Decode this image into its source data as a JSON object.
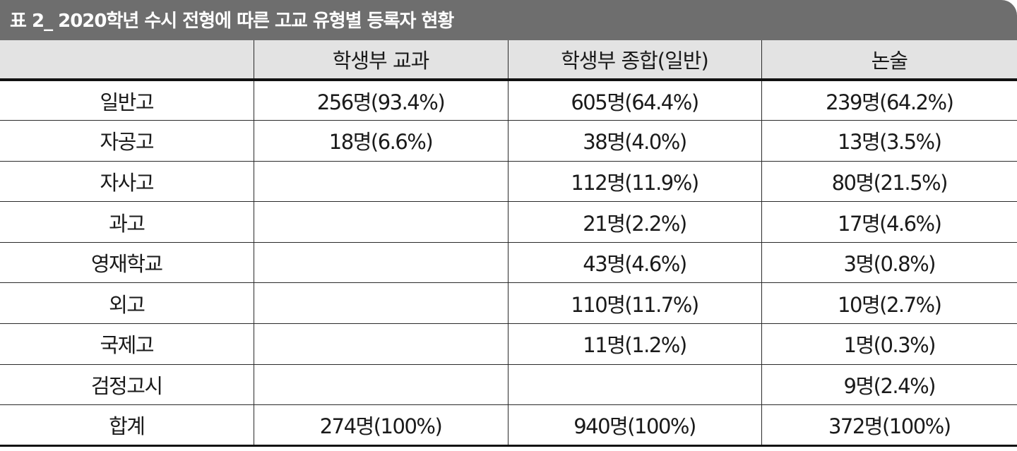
{
  "title": "표 2_ 2020학년 수시 전형에 따른 고교 유형별 등록자 현황",
  "columns": [
    "",
    "학생부 교과",
    "학생부 종합(일반)",
    "논술"
  ],
  "rows": [
    {
      "type": "일반고",
      "gyogwa": "256명(93.4%)",
      "jonghap": "605명(64.4%)",
      "nonsul": "239명(64.2%)"
    },
    {
      "type": "자공고",
      "gyogwa": "18명(6.6%)",
      "jonghap": "38명(4.0%)",
      "nonsul": "13명(3.5%)"
    },
    {
      "type": "자사고",
      "gyogwa": "",
      "jonghap": "112명(11.9%)",
      "nonsul": "80명(21.5%)"
    },
    {
      "type": "과고",
      "gyogwa": "",
      "jonghap": "21명(2.2%)",
      "nonsul": "17명(4.6%)"
    },
    {
      "type": "영재학교",
      "gyogwa": "",
      "jonghap": "43명(4.6%)",
      "nonsul": "3명(0.8%)"
    },
    {
      "type": "외고",
      "gyogwa": "",
      "jonghap": "110명(11.7%)",
      "nonsul": "10명(2.7%)"
    },
    {
      "type": "국제고",
      "gyogwa": "",
      "jonghap": "11명(1.2%)",
      "nonsul": "1명(0.3%)"
    },
    {
      "type": "검정고시",
      "gyogwa": "",
      "jonghap": "",
      "nonsul": "9명(2.4%)"
    },
    {
      "type": "합계",
      "gyogwa": "274명(100%)",
      "jonghap": "940명(100%)",
      "nonsul": "372명(100%)"
    }
  ]
}
